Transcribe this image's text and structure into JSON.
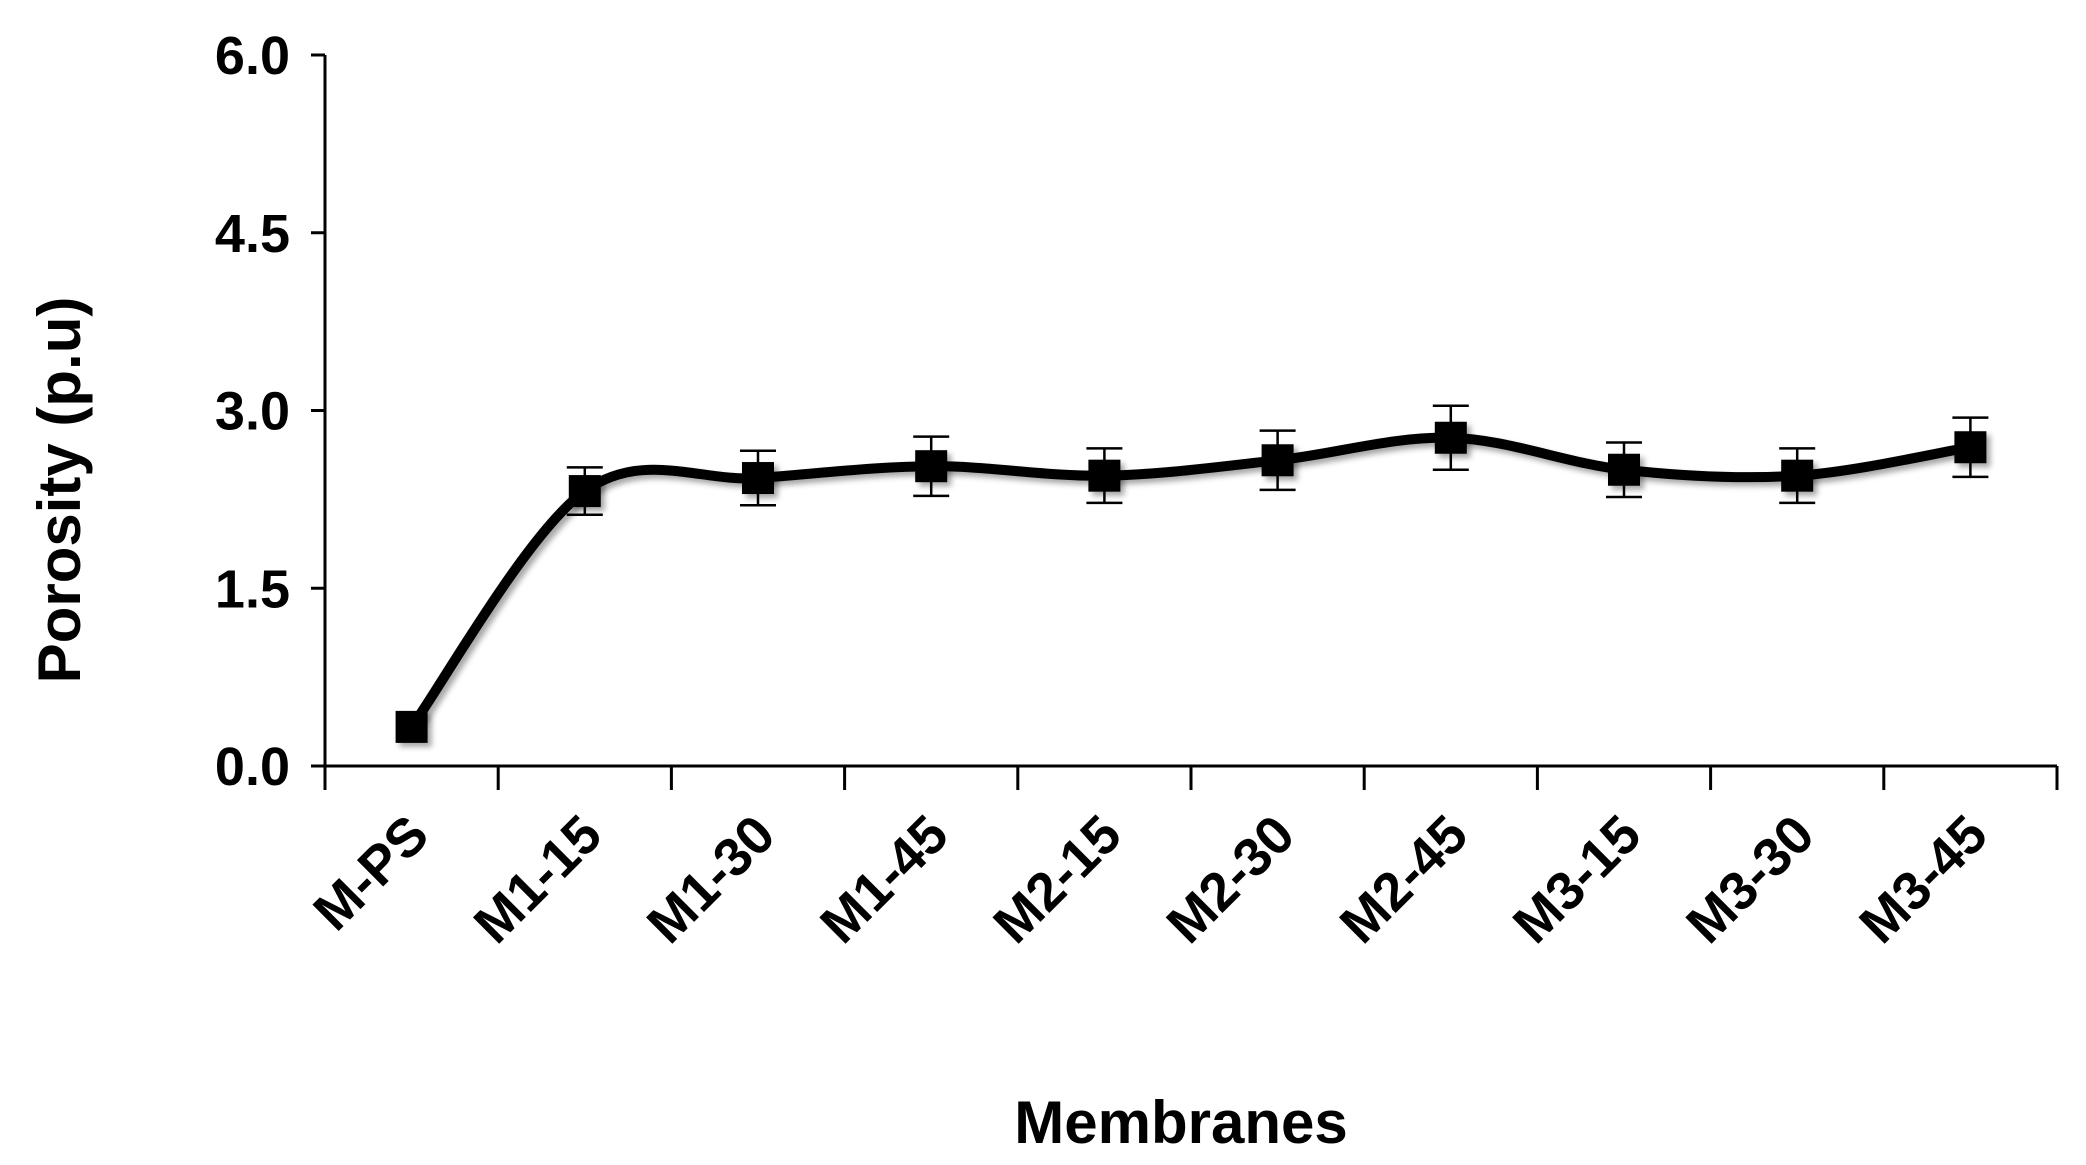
{
  "chart_data": {
    "type": "line",
    "title": "",
    "xlabel": "Membranes",
    "ylabel": "Porosity (p.u)",
    "categories": [
      "M-PS",
      "M1-15",
      "M1-30",
      "M1-45",
      "M2-15",
      "M2-30",
      "M2-45",
      "M3-15",
      "M3-30",
      "M3-45"
    ],
    "series": [
      {
        "values": [
          0.33,
          2.32,
          2.43,
          2.53,
          2.45,
          2.58,
          2.77,
          2.5,
          2.45,
          2.69
        ],
        "errors": [
          0.0,
          0.2,
          0.23,
          0.25,
          0.23,
          0.25,
          0.27,
          0.23,
          0.23,
          0.25
        ],
        "color": "#000000",
        "marker": "square",
        "smooth": true
      }
    ],
    "ylim": [
      0,
      6
    ],
    "yticks": [
      "0.0",
      "1.5",
      "3.0",
      "4.5",
      "6.0"
    ],
    "ytick_values": [
      0,
      1.5,
      3.0,
      4.5,
      6.0
    ],
    "grid": false,
    "legend": "none"
  }
}
